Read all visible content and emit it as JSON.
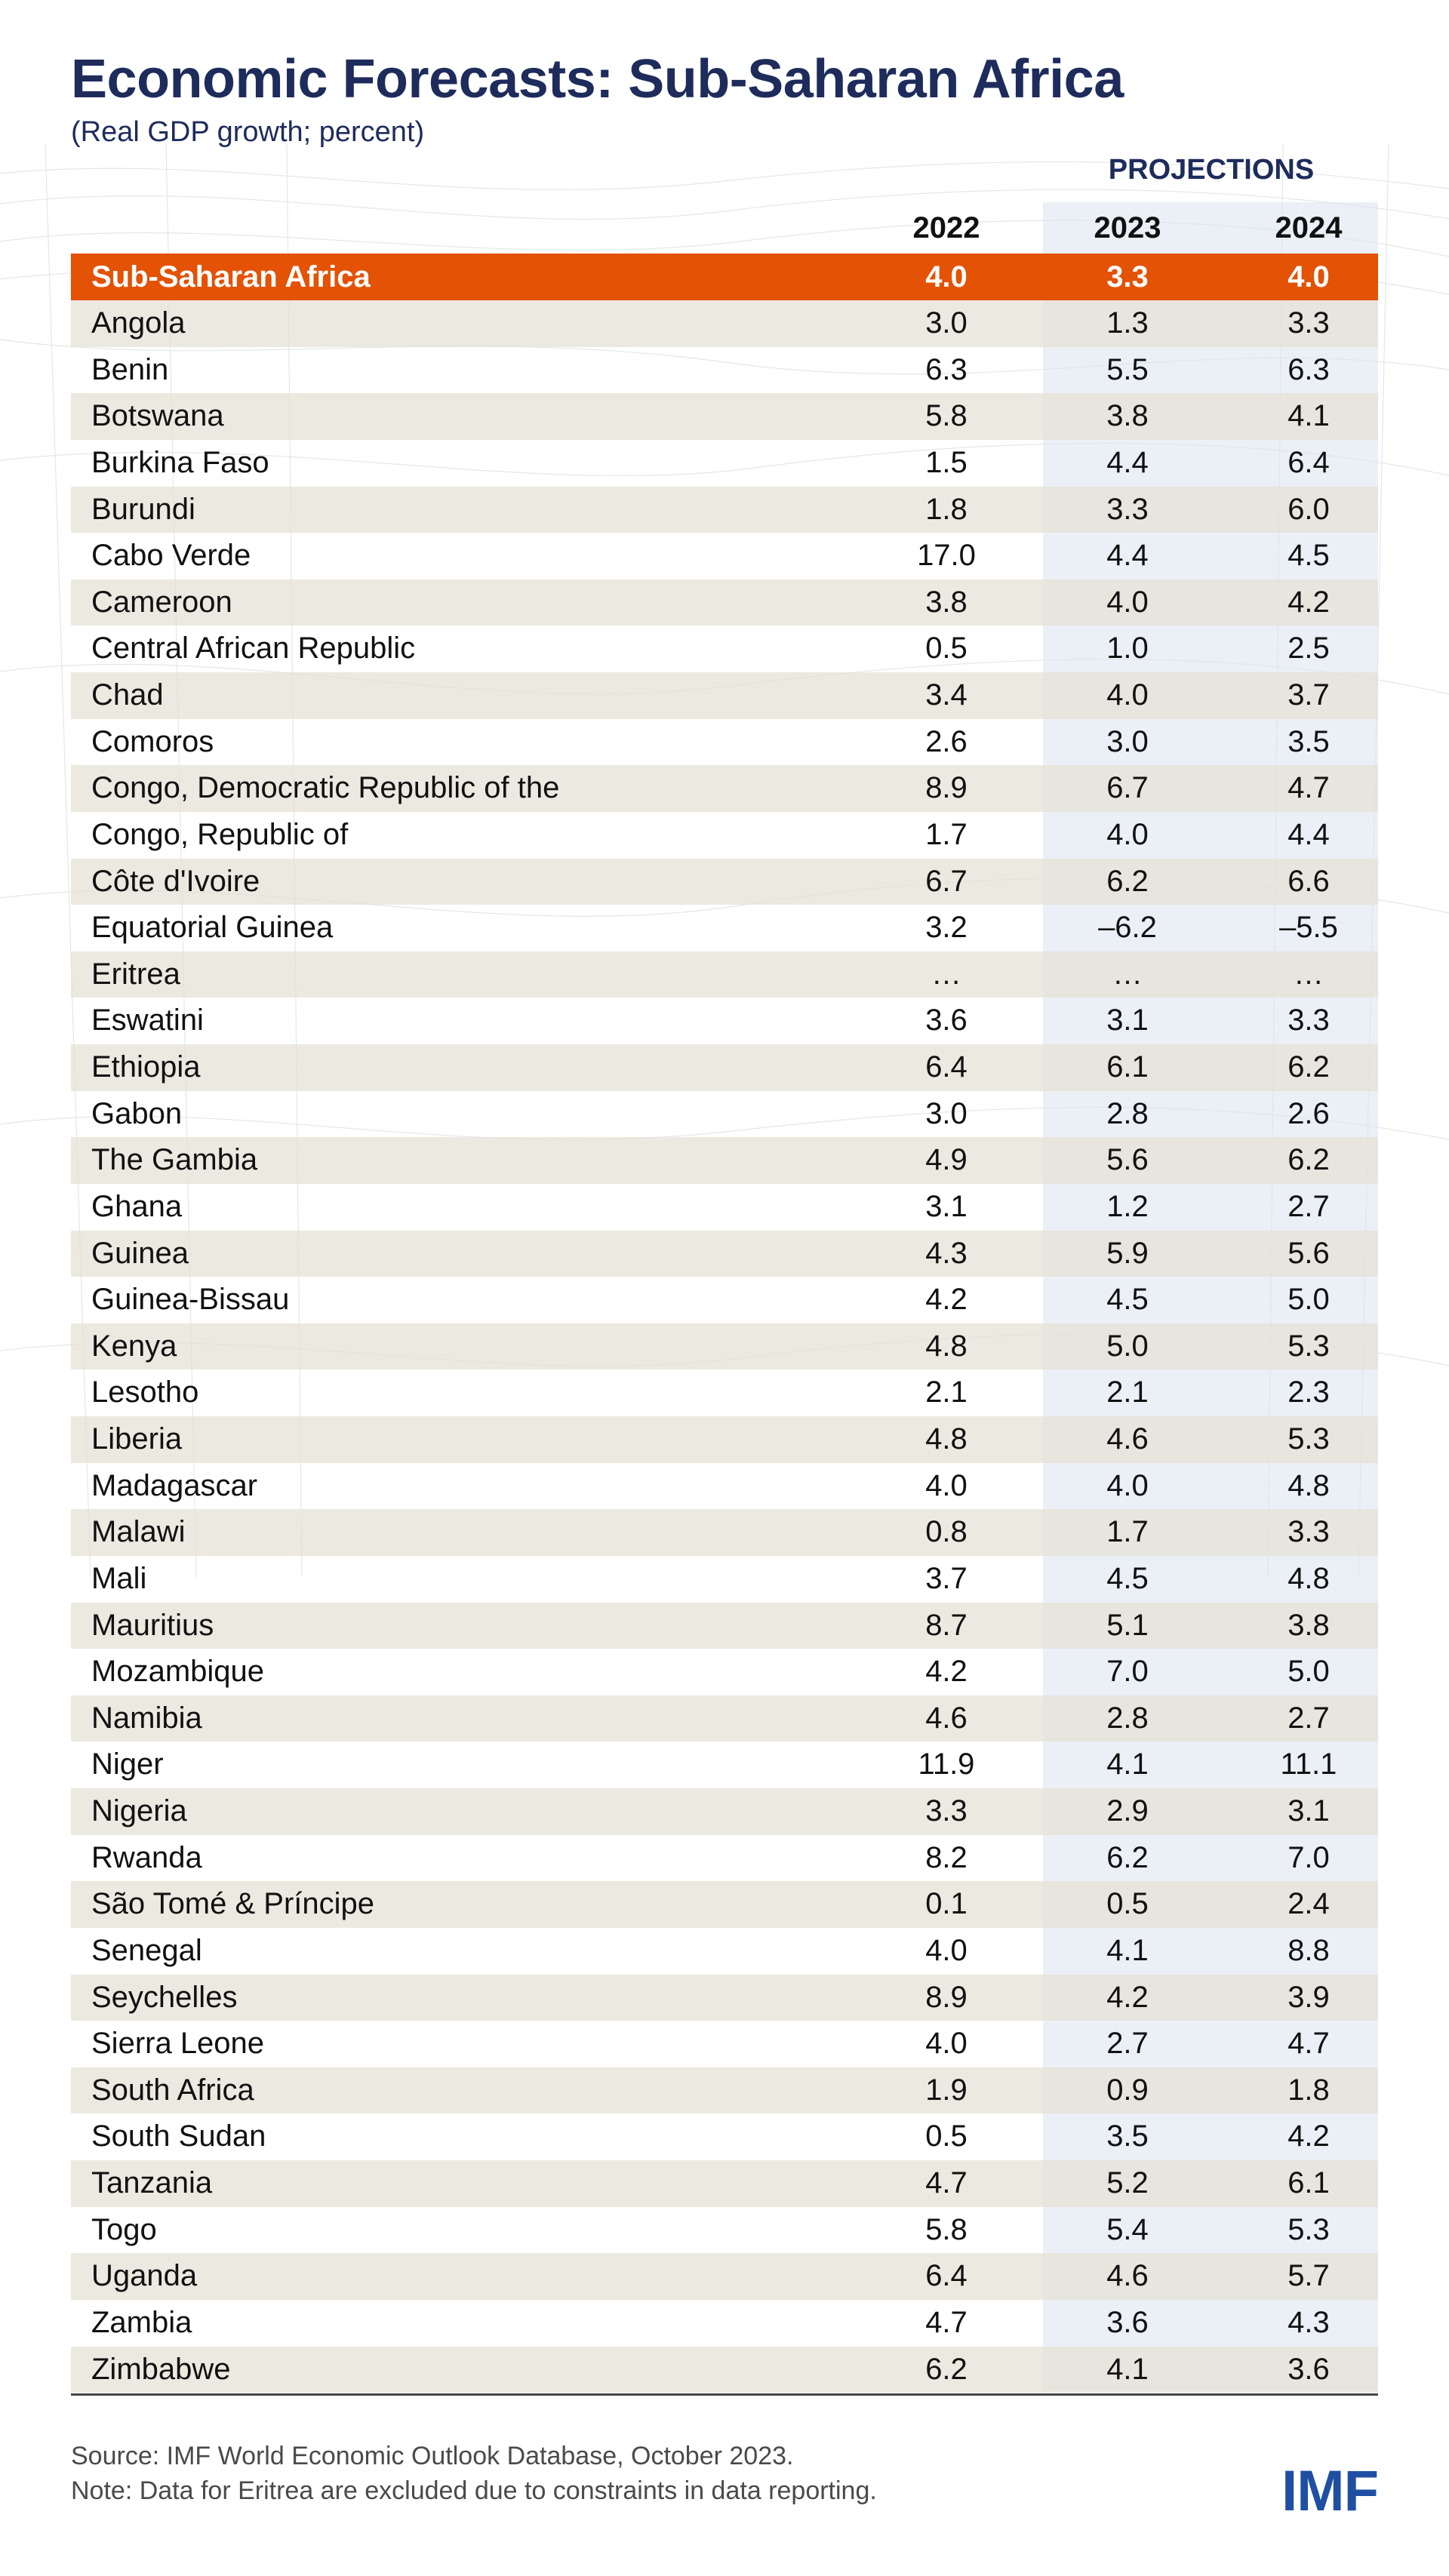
{
  "title": "Economic Forecasts: Sub-Saharan Africa",
  "subtitle": "(Real GDP growth; percent)",
  "projections_label": "PROJECTIONS",
  "source": "Source: IMF World Economic Outlook Database, October 2023.",
  "note": "Note: Data for Eritrea are excluded due to constraints in data reporting.",
  "logo": "IMF",
  "colors": {
    "header_row": "#e35205",
    "title": "#1e2c5c",
    "logo": "#1e4fa3",
    "alt_row": "#e4e0d4",
    "projection_band": "#dbe3ef"
  },
  "chart_data": {
    "type": "table",
    "columns": [
      "2022",
      "2023",
      "2024"
    ],
    "projection_columns": [
      "2023",
      "2024"
    ],
    "header_row": {
      "name": "Sub-Saharan Africa",
      "values": [
        "4.0",
        "3.3",
        "4.0"
      ]
    },
    "rows": [
      {
        "name": "Angola",
        "values": [
          "3.0",
          "1.3",
          "3.3"
        ]
      },
      {
        "name": "Benin",
        "values": [
          "6.3",
          "5.5",
          "6.3"
        ]
      },
      {
        "name": "Botswana",
        "values": [
          "5.8",
          "3.8",
          "4.1"
        ]
      },
      {
        "name": "Burkina Faso",
        "values": [
          "1.5",
          "4.4",
          "6.4"
        ]
      },
      {
        "name": "Burundi",
        "values": [
          "1.8",
          "3.3",
          "6.0"
        ]
      },
      {
        "name": "Cabo Verde",
        "values": [
          "17.0",
          "4.4",
          "4.5"
        ]
      },
      {
        "name": "Cameroon",
        "values": [
          "3.8",
          "4.0",
          "4.2"
        ]
      },
      {
        "name": "Central African Republic",
        "values": [
          "0.5",
          "1.0",
          "2.5"
        ]
      },
      {
        "name": "Chad",
        "values": [
          "3.4",
          "4.0",
          "3.7"
        ]
      },
      {
        "name": "Comoros",
        "values": [
          "2.6",
          "3.0",
          "3.5"
        ]
      },
      {
        "name": "Congo, Democratic Republic of the",
        "values": [
          "8.9",
          "6.7",
          "4.7"
        ]
      },
      {
        "name": "Congo, Republic of",
        "values": [
          "1.7",
          "4.0",
          "4.4"
        ]
      },
      {
        "name": "Côte d'Ivoire",
        "values": [
          "6.7",
          "6.2",
          "6.6"
        ]
      },
      {
        "name": "Equatorial Guinea",
        "values": [
          "3.2",
          "–6.2",
          "–5.5"
        ]
      },
      {
        "name": "Eritrea",
        "values": [
          "…",
          "…",
          "…"
        ]
      },
      {
        "name": "Eswatini",
        "values": [
          "3.6",
          "3.1",
          "3.3"
        ]
      },
      {
        "name": "Ethiopia",
        "values": [
          "6.4",
          "6.1",
          "6.2"
        ]
      },
      {
        "name": "Gabon",
        "values": [
          "3.0",
          "2.8",
          "2.6"
        ]
      },
      {
        "name": "The Gambia",
        "values": [
          "4.9",
          "5.6",
          "6.2"
        ]
      },
      {
        "name": "Ghana",
        "values": [
          "3.1",
          "1.2",
          "2.7"
        ]
      },
      {
        "name": "Guinea",
        "values": [
          "4.3",
          "5.9",
          "5.6"
        ]
      },
      {
        "name": "Guinea-Bissau",
        "values": [
          "4.2",
          "4.5",
          "5.0"
        ]
      },
      {
        "name": "Kenya",
        "values": [
          "4.8",
          "5.0",
          "5.3"
        ]
      },
      {
        "name": "Lesotho",
        "values": [
          "2.1",
          "2.1",
          "2.3"
        ]
      },
      {
        "name": "Liberia",
        "values": [
          "4.8",
          "4.6",
          "5.3"
        ]
      },
      {
        "name": "Madagascar",
        "values": [
          "4.0",
          "4.0",
          "4.8"
        ]
      },
      {
        "name": "Malawi",
        "values": [
          "0.8",
          "1.7",
          "3.3"
        ]
      },
      {
        "name": "Mali",
        "values": [
          "3.7",
          "4.5",
          "4.8"
        ]
      },
      {
        "name": "Mauritius",
        "values": [
          "8.7",
          "5.1",
          "3.8"
        ]
      },
      {
        "name": "Mozambique",
        "values": [
          "4.2",
          "7.0",
          "5.0"
        ]
      },
      {
        "name": "Namibia",
        "values": [
          "4.6",
          "2.8",
          "2.7"
        ]
      },
      {
        "name": "Niger",
        "values": [
          "11.9",
          "4.1",
          "11.1"
        ]
      },
      {
        "name": "Nigeria",
        "values": [
          "3.3",
          "2.9",
          "3.1"
        ]
      },
      {
        "name": "Rwanda",
        "values": [
          "8.2",
          "6.2",
          "7.0"
        ]
      },
      {
        "name": "São Tomé & Príncipe",
        "values": [
          "0.1",
          "0.5",
          "2.4"
        ]
      },
      {
        "name": "Senegal",
        "values": [
          "4.0",
          "4.1",
          "8.8"
        ]
      },
      {
        "name": "Seychelles",
        "values": [
          "8.9",
          "4.2",
          "3.9"
        ]
      },
      {
        "name": "Sierra Leone",
        "values": [
          "4.0",
          "2.7",
          "4.7"
        ]
      },
      {
        "name": "South Africa",
        "values": [
          "1.9",
          "0.9",
          "1.8"
        ]
      },
      {
        "name": "South Sudan",
        "values": [
          "0.5",
          "3.5",
          "4.2"
        ]
      },
      {
        "name": "Tanzania",
        "values": [
          "4.7",
          "5.2",
          "6.1"
        ]
      },
      {
        "name": "Togo",
        "values": [
          "5.8",
          "5.4",
          "5.3"
        ]
      },
      {
        "name": "Uganda",
        "values": [
          "6.4",
          "4.6",
          "5.7"
        ]
      },
      {
        "name": "Zambia",
        "values": [
          "4.7",
          "3.6",
          "4.3"
        ]
      },
      {
        "name": "Zimbabwe",
        "values": [
          "6.2",
          "4.1",
          "3.6"
        ]
      }
    ]
  }
}
